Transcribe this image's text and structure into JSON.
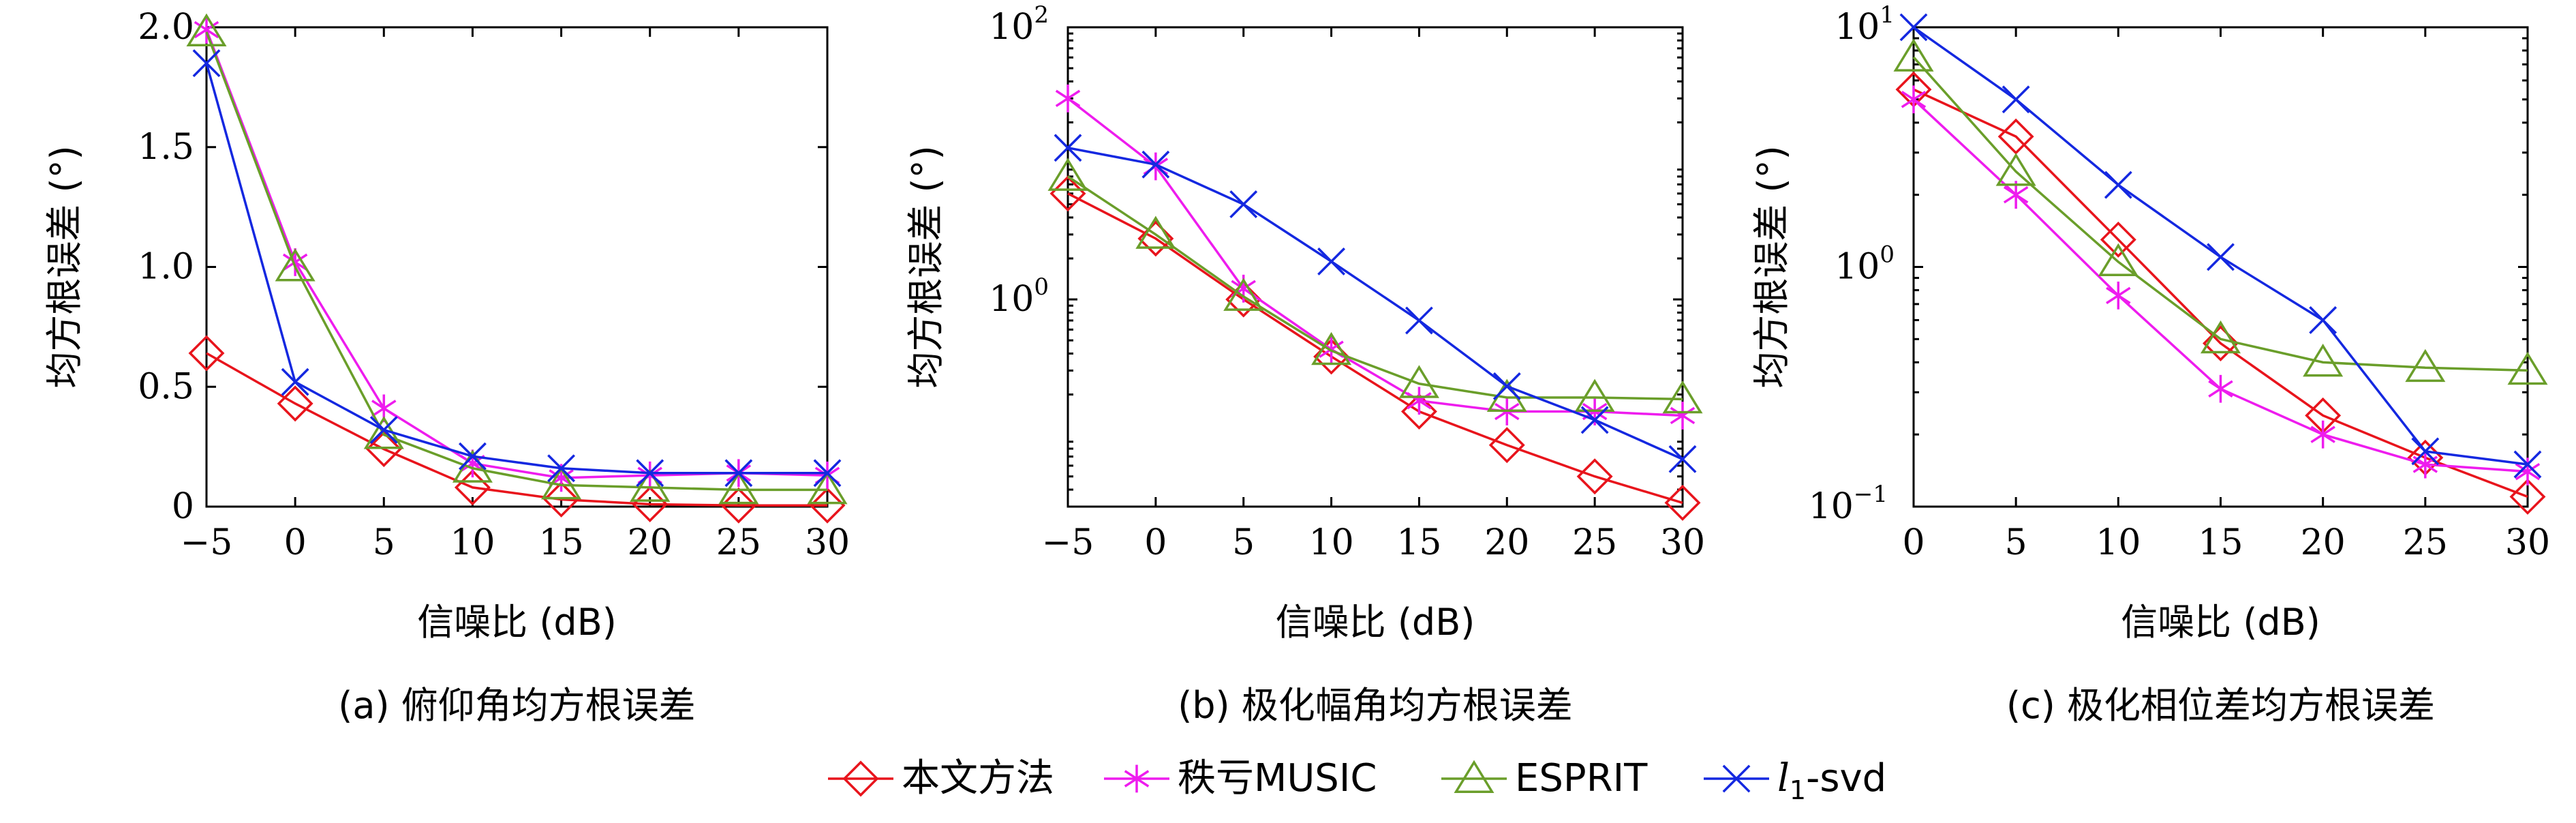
{
  "legend": [
    {
      "name": "本文方法",
      "color": "#e8141c",
      "marker": "diamond"
    },
    {
      "name": "秩亏MUSIC",
      "color": "#ee1cee",
      "marker": "asterisk"
    },
    {
      "name": "ESPRIT",
      "color": "#6a9e2a",
      "marker": "triangle"
    },
    {
      "name": "l1-svd",
      "name_main": "l",
      "name_sub": "1",
      "name_rest": "-svd",
      "color": "#1428e0",
      "marker": "x"
    }
  ],
  "chart_data": [
    {
      "type": "line",
      "caption": "(a) 俯仰角均方根误差",
      "xlabel": "信噪比 (dB)",
      "ylabel": "均方根误差 (°)",
      "x": [
        -5,
        0,
        5,
        10,
        15,
        20,
        25,
        30
      ],
      "xlim": [
        -5,
        30
      ],
      "xticks": [
        "−5",
        "0",
        "5",
        "10",
        "15",
        "20",
        "25",
        "30"
      ],
      "yscale": "linear",
      "ylim": [
        0,
        2.0
      ],
      "yticks": [
        {
          "value": 0,
          "label": "0"
        },
        {
          "value": 0.5,
          "label": "0.5"
        },
        {
          "value": 1.0,
          "label": "1.0"
        },
        {
          "value": 1.5,
          "label": "1.5"
        },
        {
          "value": 2.0,
          "label": "2.0"
        }
      ],
      "series": [
        {
          "name": "本文方法",
          "values": [
            0.64,
            0.43,
            0.24,
            0.08,
            0.03,
            0.01,
            0.005,
            0.005
          ]
        },
        {
          "name": "秩亏MUSIC",
          "values": [
            1.99,
            1.02,
            0.41,
            0.18,
            0.12,
            0.13,
            0.14,
            0.13
          ]
        },
        {
          "name": "ESPRIT",
          "values": [
            1.98,
            1.0,
            0.3,
            0.16,
            0.09,
            0.08,
            0.07,
            0.07
          ]
        },
        {
          "name": "l1-svd",
          "values": [
            1.85,
            0.52,
            0.32,
            0.21,
            0.16,
            0.14,
            0.14,
            0.14
          ]
        }
      ]
    },
    {
      "type": "line",
      "caption": "(b) 极化幅角均方根误差",
      "xlabel": "信噪比 (dB)",
      "ylabel": "均方根误差 (°)",
      "x": [
        -5,
        0,
        5,
        10,
        15,
        20,
        25,
        30
      ],
      "xlim": [
        -5,
        30
      ],
      "xticks": [
        "−5",
        "0",
        "5",
        "10",
        "15",
        "20",
        "25",
        "30"
      ],
      "yscale": "log",
      "ylim": [
        0.03,
        100
      ],
      "yticks": [
        {
          "value": 1,
          "label": "10",
          "exp": "0"
        },
        {
          "value": 100,
          "label": "10",
          "exp": "2"
        }
      ],
      "series": [
        {
          "name": "本文方法",
          "values": [
            6.0,
            2.8,
            1.0,
            0.38,
            0.15,
            0.085,
            0.05,
            0.032
          ]
        },
        {
          "name": "秩亏MUSIC",
          "values": [
            30.0,
            9.5,
            1.2,
            0.43,
            0.18,
            0.15,
            0.15,
            0.14
          ]
        },
        {
          "name": "ESPRIT",
          "values": [
            8.0,
            3.0,
            1.05,
            0.42,
            0.24,
            0.19,
            0.19,
            0.185
          ]
        },
        {
          "name": "l1-svd",
          "values": [
            13.0,
            9.8,
            5.0,
            1.9,
            0.7,
            0.23,
            0.13,
            0.067
          ]
        }
      ]
    },
    {
      "type": "line",
      "caption": "(c) 极化相位差均方根误差",
      "xlabel": "信噪比 (dB)",
      "ylabel": "均方根误差 (°)",
      "x": [
        0,
        5,
        10,
        15,
        20,
        25,
        30
      ],
      "xlim": [
        0,
        30
      ],
      "xticks": [
        "0",
        "5",
        "10",
        "15",
        "20",
        "25",
        "30"
      ],
      "yscale": "log",
      "ylim": [
        0.1,
        10
      ],
      "yticks": [
        {
          "value": 0.1,
          "label": "10",
          "exp": "−1"
        },
        {
          "value": 1,
          "label": "10",
          "exp": "0"
        },
        {
          "value": 10,
          "label": "10",
          "exp": "1"
        }
      ],
      "series": [
        {
          "name": "本文方法",
          "values": [
            5.5,
            3.5,
            1.3,
            0.48,
            0.24,
            0.16,
            0.11
          ]
        },
        {
          "name": "秩亏MUSIC",
          "values": [
            5.0,
            2.0,
            0.76,
            0.31,
            0.2,
            0.15,
            0.14
          ]
        },
        {
          "name": "ESPRIT",
          "values": [
            7.5,
            2.5,
            1.05,
            0.5,
            0.4,
            0.38,
            0.37
          ]
        },
        {
          "name": "l1-svd",
          "values": [
            10.0,
            5.0,
            2.2,
            1.1,
            0.6,
            0.17,
            0.15
          ]
        }
      ]
    }
  ]
}
